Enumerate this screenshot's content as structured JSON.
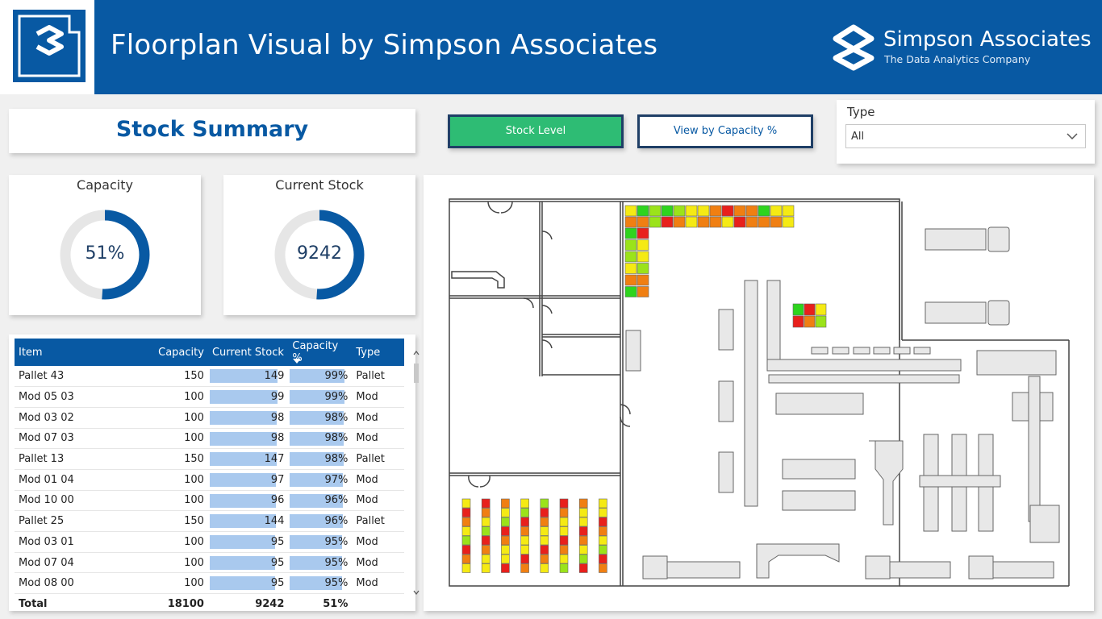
{
  "header": {
    "title": "Floorplan Visual by Simpson Associates",
    "brand_name": "Simpson Associates",
    "brand_tagline": "The Data Analytics Company"
  },
  "summary": {
    "title": "Stock Summary"
  },
  "buttons": {
    "stock_level": "Stock Level",
    "capacity": "View by Capacity %"
  },
  "slicer": {
    "label": "Type",
    "value": "All"
  },
  "kpis": {
    "capacity": {
      "title": "Capacity",
      "value": "51%",
      "fraction": 0.51
    },
    "current_stock": {
      "title": "Current Stock",
      "value": "9242",
      "fraction": 0.51
    }
  },
  "table": {
    "headers": [
      "Item",
      "Capacity",
      "Current Stock",
      "Capacity %",
      "Type"
    ],
    "rows": [
      [
        "Pallet 43",
        "150",
        "149",
        "99%",
        "Pallet"
      ],
      [
        "Mod 05 03",
        "100",
        "99",
        "99%",
        "Mod"
      ],
      [
        "Mod 03 02",
        "100",
        "98",
        "98%",
        "Mod"
      ],
      [
        "Mod 07 03",
        "100",
        "98",
        "98%",
        "Mod"
      ],
      [
        "Pallet 13",
        "150",
        "147",
        "98%",
        "Pallet"
      ],
      [
        "Mod 01 04",
        "100",
        "97",
        "97%",
        "Mod"
      ],
      [
        "Mod 10 00",
        "100",
        "96",
        "96%",
        "Mod"
      ],
      [
        "Pallet 25",
        "150",
        "144",
        "96%",
        "Pallet"
      ],
      [
        "Mod 03 01",
        "100",
        "95",
        "95%",
        "Mod"
      ],
      [
        "Mod 07 04",
        "100",
        "95",
        "95%",
        "Mod"
      ],
      [
        "Mod 08 00",
        "100",
        "95",
        "95%",
        "Mod"
      ]
    ],
    "total": [
      "Total",
      "18100",
      "9242",
      "51%",
      ""
    ]
  },
  "colors": {
    "brand_blue": "#0859a3",
    "button_green": "#2ebc74",
    "bar_fill": "#a9c9ee",
    "heat_red": "#e8201c",
    "heat_orange": "#f07f12",
    "heat_yellow": "#f5ea14",
    "heat_lime": "#9be31a",
    "heat_green": "#2ed41e"
  }
}
